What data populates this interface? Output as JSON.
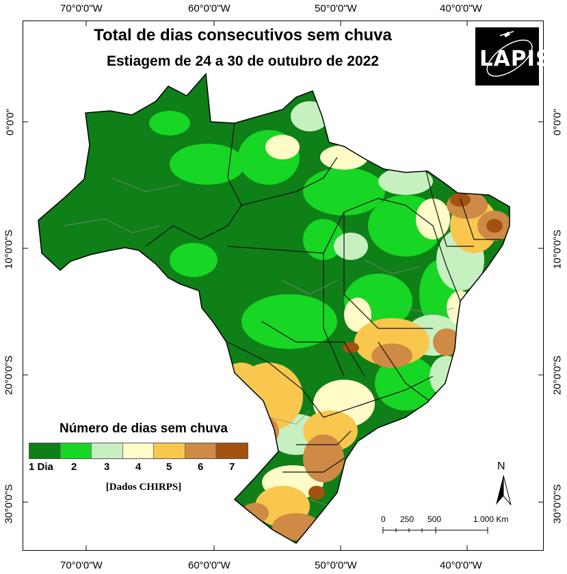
{
  "map": {
    "title": "Total de dias consecutivos sem chuva",
    "subtitle": "Estiagem de 24 a 30 de outubro de 2022",
    "logo_text": "LAPIS",
    "source": "[Dados CHIRPS]"
  },
  "coords": {
    "lon_labels": [
      "70°0'0\"W",
      "60°0'0\"W",
      "50°0'0\"W",
      "40°0'0\"W"
    ],
    "lat_labels": [
      "0°0'0\"",
      "10°0'0\"S",
      "20°0'0\"S",
      "30°0'0\"S"
    ]
  },
  "legend": {
    "title": "Número de dias sem chuva",
    "classes": [
      {
        "label": "1 Dia",
        "color": "#0f7f18"
      },
      {
        "label": "2",
        "color": "#18d624"
      },
      {
        "label": "3",
        "color": "#c6f0c0"
      },
      {
        "label": "4",
        "color": "#fffcc8"
      },
      {
        "label": "5",
        "color": "#f9c74e"
      },
      {
        "label": "6",
        "color": "#cf8a45"
      },
      {
        "label": "7",
        "color": "#a35210"
      }
    ]
  },
  "north_arrow": {
    "label": "N"
  },
  "scale_bar": {
    "labels": [
      "0",
      "250",
      "500",
      "1.000 Km"
    ]
  }
}
